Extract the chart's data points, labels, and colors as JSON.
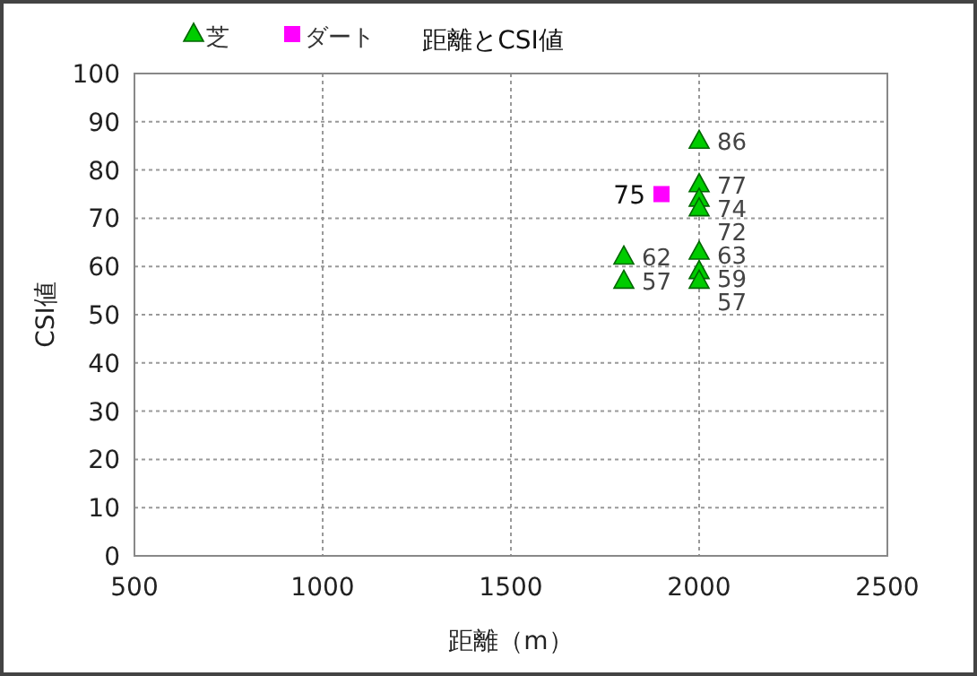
{
  "chart_data": {
    "type": "scatter",
    "title": "距離とCSI値",
    "xlabel": "距離（m）",
    "ylabel": "CSI値",
    "xlim": [
      500,
      2500
    ],
    "xticks": [
      500,
      1000,
      1500,
      2000,
      2500
    ],
    "ylim": [
      0,
      100
    ],
    "yticks": [
      0,
      10,
      20,
      30,
      40,
      50,
      60,
      70,
      80,
      90,
      100
    ],
    "grid": true,
    "legend": "top left",
    "data_labels": true,
    "series": [
      {
        "name": "芝",
        "color": "#00cc00",
        "marker": "triangle",
        "x": [
          2000,
          2000,
          2000,
          2000,
          2000,
          2000,
          2000,
          1800,
          1800
        ],
        "values": [
          86,
          77,
          74,
          72,
          63,
          59,
          57,
          62,
          57
        ]
      },
      {
        "name": "ダート",
        "color": "#ff00ff",
        "marker": "square",
        "x": [
          1900
        ],
        "values": [
          75
        ]
      }
    ]
  }
}
